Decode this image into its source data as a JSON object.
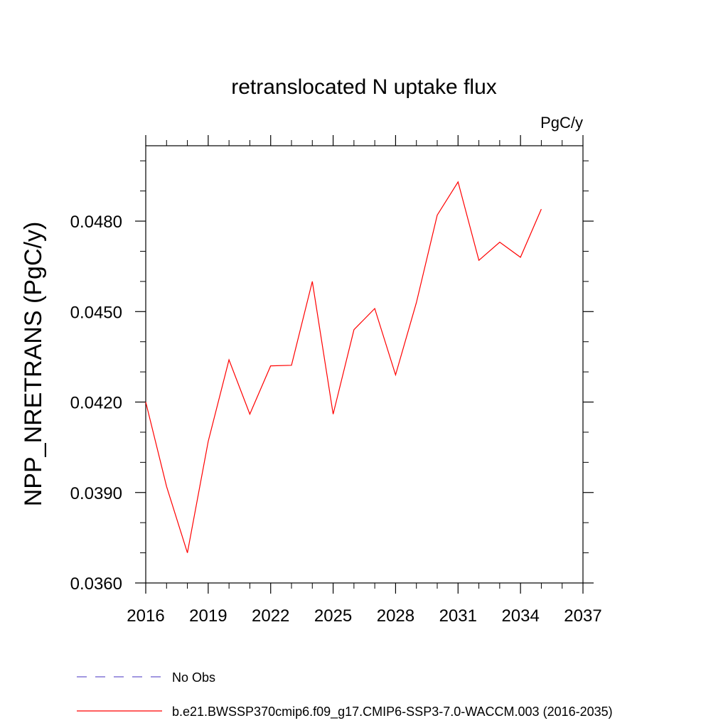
{
  "chart_data": {
    "type": "line",
    "title": "retranslocated N uptake flux",
    "units": "PgC/y",
    "xlabel": "",
    "ylabel": "NPP_NRETRANS  (PgC/y)",
    "xlim": [
      2016,
      2037
    ],
    "ylim": [
      0.036,
      0.0505
    ],
    "x_ticks": [
      2016,
      2019,
      2022,
      2025,
      2028,
      2031,
      2034,
      2037
    ],
    "x_tick_labels": [
      "2016",
      "2019",
      "2022",
      "2025",
      "2028",
      "2031",
      "2034",
      "2037"
    ],
    "y_ticks": [
      0.036,
      0.039,
      0.042,
      0.045,
      0.048
    ],
    "y_tick_labels": [
      "0.0360",
      "0.0390",
      "0.0420",
      "0.0450",
      "0.0480"
    ],
    "series": [
      {
        "name": "b.e21.BWSSP370cmip6.f09_g17.CMIP6-SSP3-7.0-WACCM.003 (2016-2035)",
        "color": "#ff0000",
        "style": "solid",
        "x": [
          2016,
          2017,
          2018,
          2019,
          2020,
          2021,
          2022,
          2023,
          2024,
          2025,
          2026,
          2027,
          2028,
          2029,
          2030,
          2031,
          2032,
          2033,
          2034,
          2035
        ],
        "values": [
          0.042,
          0.0392,
          0.037,
          0.0407,
          0.0434,
          0.0416,
          0.0432,
          0.04322,
          0.046,
          0.0416,
          0.0444,
          0.0451,
          0.0429,
          0.0453,
          0.0482,
          0.0493,
          0.0467,
          0.0473,
          0.0468,
          0.0484
        ]
      }
    ],
    "legend": [
      {
        "label": "No Obs",
        "color": "#6a5acd",
        "style": "dashed"
      },
      {
        "label": "b.e21.BWSSP370cmip6.f09_g17.CMIP6-SSP3-7.0-WACCM.003 (2016-2035)",
        "color": "#ff0000",
        "style": "solid"
      }
    ]
  }
}
